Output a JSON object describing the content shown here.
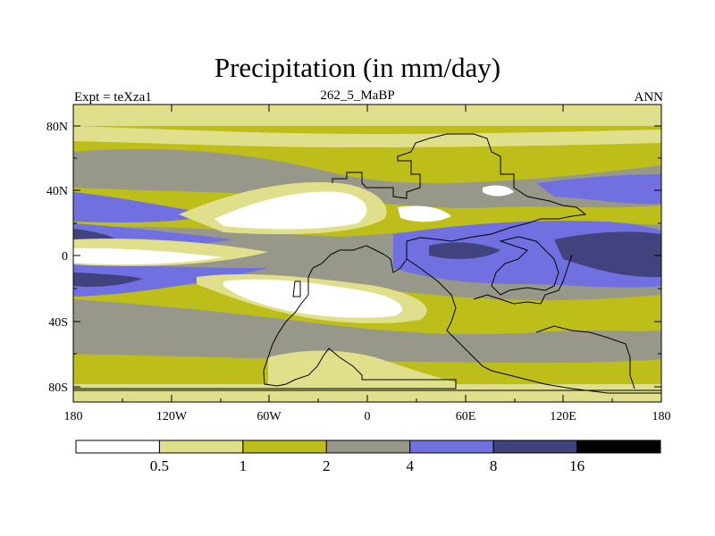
{
  "title": "Precipitation (in mm/day)",
  "subtitle_left": "Expt = teXza1",
  "subtitle_center": "262_5_MaBP",
  "subtitle_right": "ANN",
  "map": {
    "lat_ticks": [
      "80N",
      "40N",
      "0",
      "40S",
      "80S"
    ],
    "lat_values": [
      80,
      40,
      0,
      -40,
      -80
    ],
    "lon_ticks": [
      "180",
      "120W",
      "60W",
      "0",
      "60E",
      "120E",
      "180"
    ],
    "lon_values": [
      -180,
      -120,
      -60,
      0,
      60,
      120,
      180
    ],
    "lat_range": [
      -90,
      90
    ],
    "lon_range": [
      -180,
      180
    ]
  },
  "colorbar": {
    "levels": [
      "0.5",
      "1",
      "2",
      "4",
      "8",
      "16"
    ],
    "colors": [
      "#ffffff",
      "#e0e08c",
      "#bebe1a",
      "#98988a",
      "#7070e0",
      "#42427e",
      "#000000"
    ]
  },
  "colors": {
    "white": "#ffffff",
    "light_yellow": "#e0e08c",
    "olive": "#bebe1a",
    "gray": "#98988a",
    "blue": "#7070e0",
    "dark_blue": "#42427e"
  }
}
